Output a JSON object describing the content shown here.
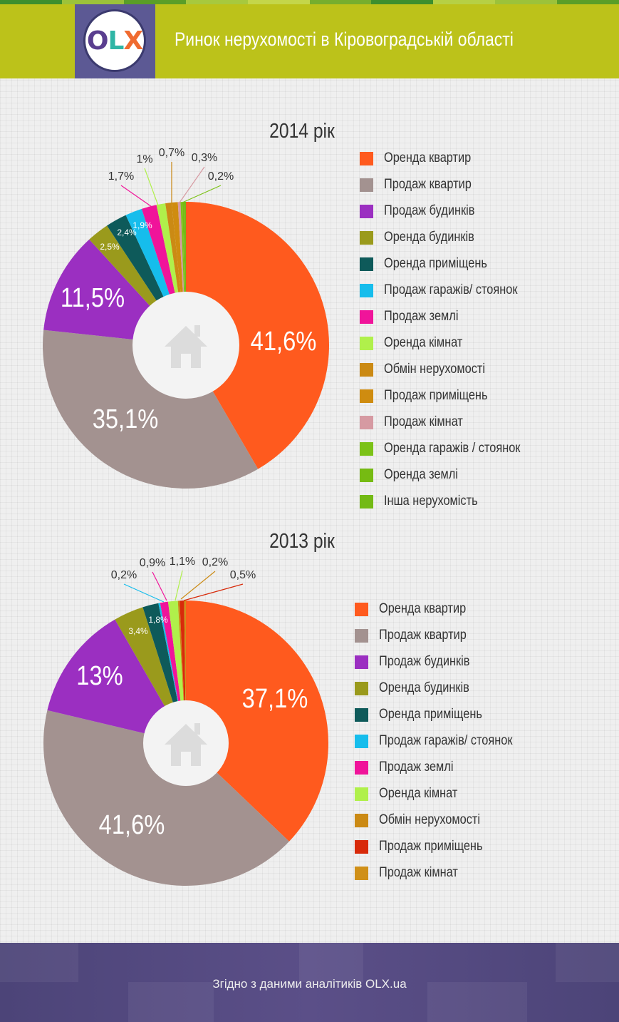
{
  "header": {
    "title": "Ринок нерухомості в Кіровоградській області"
  },
  "logo": {
    "letters": [
      "O",
      "L",
      "X"
    ],
    "colors": [
      "#5a3e8f",
      "#2fb5a5",
      "#f06b30"
    ]
  },
  "footer": {
    "text": "Згідно з даними аналітиків OLX.ua"
  },
  "chart_data": [
    {
      "type": "pie",
      "title": "2014 рік",
      "series": [
        {
          "name": "Оренда квартир",
          "value": 41.6,
          "label": "41,6%",
          "color": "#ff5a1e"
        },
        {
          "name": "Продаж квартир",
          "value": 35.1,
          "label": "35,1%",
          "color": "#a39290"
        },
        {
          "name": "Продаж будинків",
          "value": 11.5,
          "label": "11,5%",
          "color": "#9b2fc1"
        },
        {
          "name": "Оренда будинків",
          "value": 2.5,
          "label": "2,5%",
          "color": "#9a9a1c"
        },
        {
          "name": "Оренда приміщень",
          "value": 2.4,
          "label": "2,4%",
          "color": "#0e5a5a"
        },
        {
          "name": "Продаж гаражів/ стоянок",
          "value": 1.9,
          "label": "1,9%",
          "color": "#16bdec"
        },
        {
          "name": "Продаж землі",
          "value": 1.7,
          "label": "1,7%",
          "color": "#f0149a"
        },
        {
          "name": "Оренда кімнат",
          "value": 1.0,
          "label": "1%",
          "color": "#b0f04b"
        },
        {
          "name": "Обмін нерухомості",
          "value": 0.7,
          "label": "0,7%",
          "color": "#cb8a14"
        },
        {
          "name": "Продаж приміщень",
          "value": 0.7,
          "label": "",
          "color": "#cf8c10"
        },
        {
          "name": "Продаж кімнат",
          "value": 0.3,
          "label": "0,3%",
          "color": "#d69aa2"
        },
        {
          "name": "Оренда гаражів / стоянок",
          "value": 0.2,
          "label": "0,2%",
          "color": "#7cc218"
        },
        {
          "name": "Оренда землі",
          "value": 0.2,
          "label": "",
          "color": "#76bb12"
        },
        {
          "name": "Інша нерухомість",
          "value": 0.2,
          "label": "",
          "color": "#73ba14"
        }
      ]
    },
    {
      "type": "pie",
      "title": "2013 рік",
      "series": [
        {
          "name": "Оренда квартир",
          "value": 37.1,
          "label": "37,1%",
          "color": "#ff5a1e"
        },
        {
          "name": "Продаж квартир",
          "value": 41.6,
          "label": "41,6%",
          "color": "#a39290"
        },
        {
          "name": "Продаж будинків",
          "value": 13.0,
          "label": "13%",
          "color": "#9b2fc1"
        },
        {
          "name": "Оренда будинків",
          "value": 3.4,
          "label": "3,4%",
          "color": "#9a9a1c"
        },
        {
          "name": "Оренда приміщень",
          "value": 1.8,
          "label": "1,8%",
          "color": "#0e5a5a"
        },
        {
          "name": "Продаж гаражів/ стоянок",
          "value": 0.2,
          "label": "0,2%",
          "color": "#16bdec"
        },
        {
          "name": "Продаж землі",
          "value": 0.9,
          "label": "0,9%",
          "color": "#f0149a"
        },
        {
          "name": "Оренда кімнат",
          "value": 1.1,
          "label": "1,1%",
          "color": "#b0f04b"
        },
        {
          "name": "Обмін нерухомості",
          "value": 0.2,
          "label": "0,2%",
          "color": "#cb8a14"
        },
        {
          "name": "Продаж приміщень",
          "value": 0.5,
          "label": "0,5%",
          "color": "#d82a0a"
        },
        {
          "name": "Продаж кімнат",
          "value": 0.2,
          "label": "",
          "color": "#d09018"
        }
      ]
    }
  ]
}
